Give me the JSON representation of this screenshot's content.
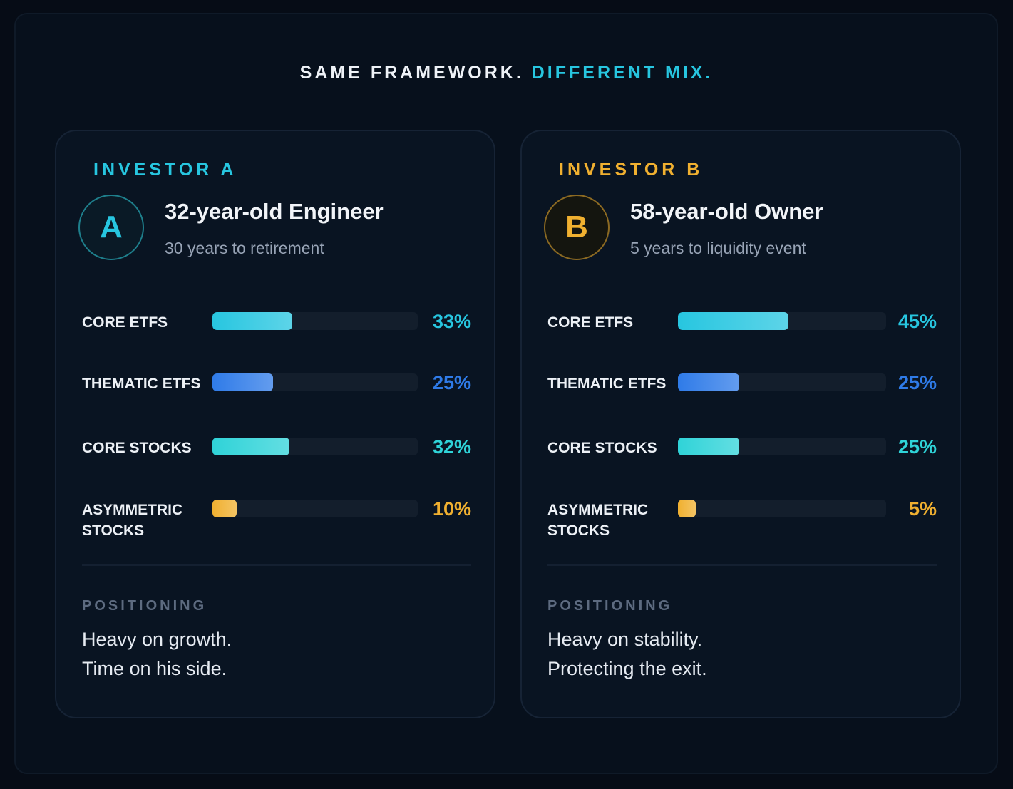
{
  "headline": {
    "part1": "SAME FRAMEWORK.",
    "part2": "DIFFERENT MIX."
  },
  "colors": {
    "cyan": "#27c6e0",
    "blue": "#2f7be8",
    "teal": "#2fd3d8",
    "gold": "#f0b030"
  },
  "investors": [
    {
      "label": "INVESTOR A",
      "badge": "A",
      "title": "32-year-old Engineer",
      "subtitle": "30 years to retirement",
      "accent": "#27c6e0",
      "allocations": [
        {
          "label": "CORE ETFS",
          "value": "33%",
          "fraction": 0.33,
          "color": "#27c6e0"
        },
        {
          "label": "THEMATIC ETFS",
          "value": "25%",
          "fraction": 0.25,
          "color": "#2f7be8"
        },
        {
          "label": "CORE STOCKS",
          "value": "32%",
          "fraction": 0.32,
          "color": "#2fd3d8"
        },
        {
          "label": "ASYMMETRIC STOCKS",
          "value": "10%",
          "fraction": 0.1,
          "color": "#f0b030"
        }
      ],
      "positioning_label": "POSITIONING",
      "positioning_lines": [
        "Heavy on growth.",
        "Time on his side."
      ]
    },
    {
      "label": "INVESTOR B",
      "badge": "B",
      "title": "58-year-old Owner",
      "subtitle": "5 years to liquidity event",
      "accent": "#f0b030",
      "allocations": [
        {
          "label": "CORE ETFS",
          "value": "45%",
          "fraction": 0.45,
          "color": "#27c6e0"
        },
        {
          "label": "THEMATIC ETFS",
          "value": "25%",
          "fraction": 0.25,
          "color": "#2f7be8"
        },
        {
          "label": "CORE STOCKS",
          "value": "25%",
          "fraction": 0.25,
          "color": "#2fd3d8"
        },
        {
          "label": "ASYMMETRIC STOCKS",
          "value": "5%",
          "fraction": 0.05,
          "color": "#f0b030"
        }
      ],
      "positioning_label": "POSITIONING",
      "positioning_lines": [
        "Heavy on stability.",
        "Protecting the exit."
      ]
    }
  ]
}
